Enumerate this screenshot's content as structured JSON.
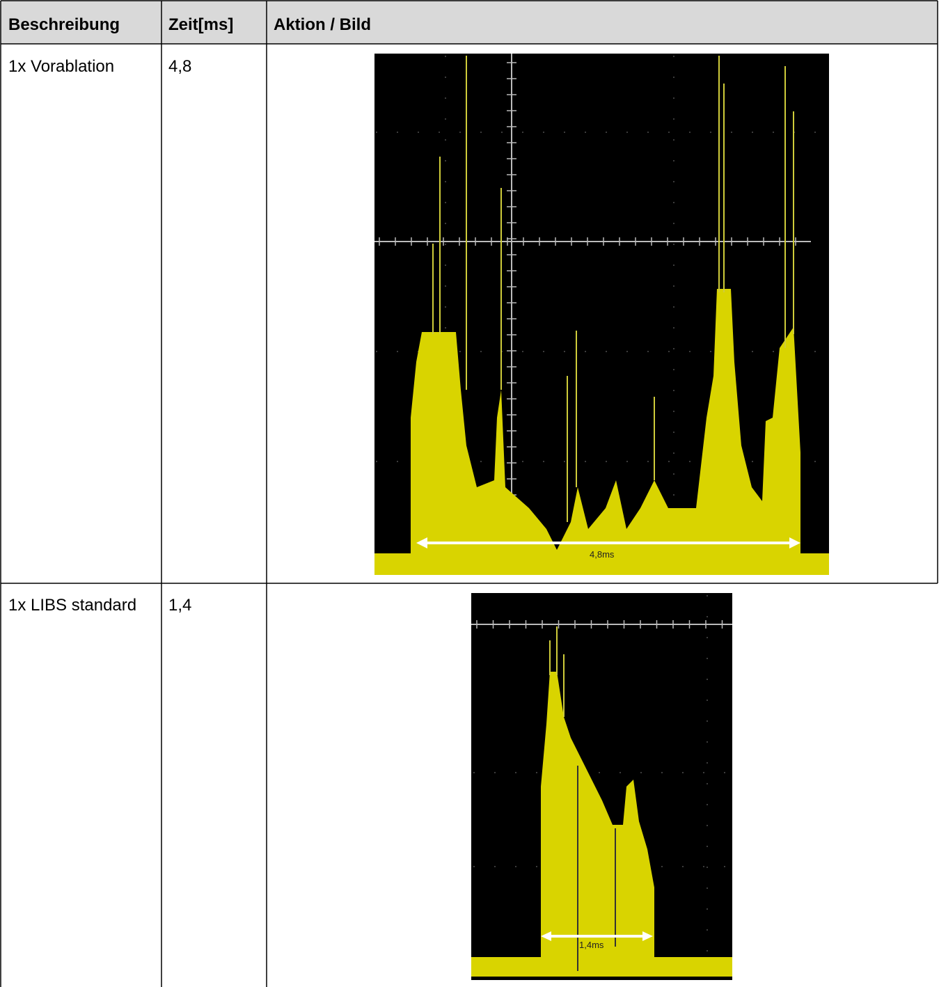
{
  "table": {
    "headers": [
      "Beschreibung",
      "Zeit[ms]",
      "Aktion / Bild"
    ],
    "rows": [
      {
        "description": "1x Vorablation",
        "time": "4,8",
        "image_label": "4,8ms"
      },
      {
        "description": "1x LIBS standard",
        "time": "1,4",
        "image_label": "1,4ms"
      }
    ]
  }
}
